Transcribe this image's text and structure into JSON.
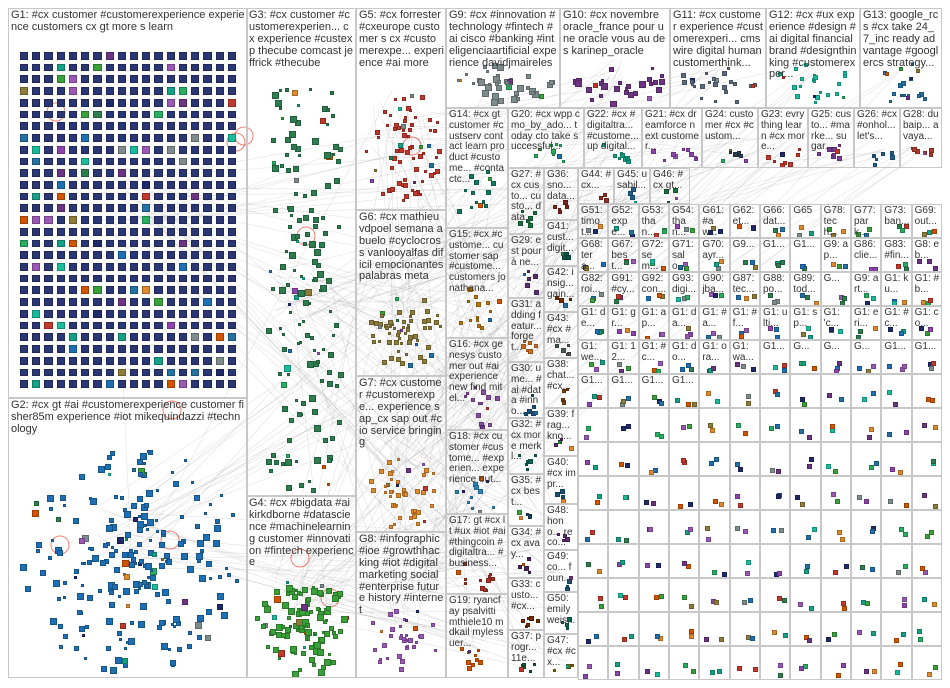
{
  "graph": {
    "title": "",
    "groups": [
      {
        "id": "G1",
        "label": "G1: #cx customer #customerexperience experience customers cx gt more s learn",
        "color": "#1f2a6b",
        "nodes": 520,
        "style": "grid"
      },
      {
        "id": "G2",
        "label": "G2: #cx gt #ai #customerexperience customer fisher85m experience #iot mikequindazzi #technology",
        "color": "#1e6fb3",
        "nodes": 260,
        "style": "cluster"
      },
      {
        "id": "G3",
        "label": "G3: #cx customer #customerexperien... cx experience #custexp thecube comcast jeffrick #thecube",
        "color": "#2e7d4f",
        "nodes": 150,
        "style": "column"
      },
      {
        "id": "G4",
        "label": "G4: #cx #bigdata #ai kirkdborne #datascience #machinelearning customer #innovation #fintech experience",
        "color": "#3aa03a",
        "nodes": 110,
        "style": "cluster"
      },
      {
        "id": "G5",
        "label": "G5: #cx forrester #cxeurope customer s cx #customerexpe... experience #ai more",
        "color": "#c0392b",
        "nodes": 70,
        "style": "cluster"
      },
      {
        "id": "G6",
        "label": "G6: #cx mathieuvdpoel semana abuelo #cyclocross vanlooyalfas dificil emocionantes palabras meta",
        "color": "#8e7c3a",
        "nodes": 60,
        "style": "cluster"
      },
      {
        "id": "G7",
        "label": "G7: #cx customer #customerexpe... experience sap_cx sap out #cio service bringing",
        "color": "#e08a2e",
        "nodes": 45,
        "style": "cluster"
      },
      {
        "id": "G8",
        "label": "G8: #infographic #ioe #growthhacking #iot #digitalmarketing social #enterprise future history #internet",
        "color": "#9b59b6",
        "nodes": 35,
        "style": "cluster"
      },
      {
        "id": "G9",
        "label": "G9: #cx #innovation #technology #fintech #ai cisco #banking #inteligenciaartificial experience davidjmaireles",
        "color": "#7f8c8d",
        "nodes": 40,
        "style": "cluster"
      },
      {
        "id": "G10",
        "label": "G10: #cx novembre oracle_france pour une oracle vous au des karinep_oracle",
        "color": "#6c3483",
        "nodes": 28,
        "style": "cluster"
      },
      {
        "id": "G11",
        "label": "G11: #cx customer experience #customerexperi... cmswire digital human customerthink...",
        "color": "#5d6d7e",
        "nodes": 24,
        "style": "cluster"
      },
      {
        "id": "G12",
        "label": "G12: #cx #ux experience #design #ai digital financialbrand #designthinking #customerexper...",
        "color": "#1abc9c",
        "nodes": 22,
        "style": "cluster"
      },
      {
        "id": "G13",
        "label": "G13: google_rcs #cx take 24_7_inc ready advantage #googlercs strategy...",
        "color": "#2471a3",
        "nodes": 18,
        "style": "cluster"
      },
      {
        "id": "G14",
        "label": "G14: #cx gt customer #custserv contact learn product #custome... #contactc...",
        "color": "#117a65",
        "nodes": 16,
        "style": "cluster"
      },
      {
        "id": "G15",
        "label": "G15: #cx #custome... customer sap #custome... customers jonathana...",
        "color": "#b9770e",
        "nodes": 14,
        "style": "cluster"
      },
      {
        "id": "G16",
        "label": "G16: #cx genesys customer out #ai experience new find mitel...",
        "color": "#884ea0",
        "nodes": 14,
        "style": "cluster"
      },
      {
        "id": "G17",
        "label": "G17: gt #cx lt #ux #iot #ai #thingcoin #digitaltra... #business...",
        "color": "#a93226",
        "nodes": 12,
        "style": "cluster"
      },
      {
        "id": "G18",
        "label": "G18: #cx customer #custome... #experien... experience out...",
        "color": "#2e86c1",
        "nodes": 12,
        "style": "cluster"
      },
      {
        "id": "G19",
        "label": "G19: ryancfay psalvitti mthiele10 mdkail mylessuer...",
        "color": "#d35400",
        "nodes": 10,
        "style": "cluster"
      },
      {
        "id": "G20",
        "label": "G20: #cx wpp cmo_by_ado... today cto take successful...",
        "color": "#27ae60",
        "nodes": 10,
        "style": "cluster"
      },
      {
        "id": "G21",
        "label": "G21: #cx dreamforce next customer...",
        "color": "#8e44ad",
        "nodes": 9,
        "style": "cluster"
      },
      {
        "id": "G22",
        "label": "G22: #cx #digitaltra... #custome... up digital...",
        "color": "#16a085",
        "nodes": 9,
        "style": "cluster"
      },
      {
        "id": "G23",
        "label": "G23: evrything learn #cx more...",
        "color": "#c0392b",
        "nodes": 8,
        "style": "cluster"
      },
      {
        "id": "G24",
        "label": "G24: customer #cx #custom...",
        "color": "#2c3e50",
        "nodes": 8,
        "style": "cluster"
      },
      {
        "id": "G25",
        "label": "G25: custo... #marke... sugar...",
        "color": "#7d3c98",
        "nodes": 8,
        "style": "cluster"
      },
      {
        "id": "G26",
        "label": "G26: #cx #onhol... let's...",
        "color": "#1f618d",
        "nodes": 7,
        "style": "cluster"
      },
      {
        "id": "G27",
        "label": "G27: #cx custo... custo... data...",
        "color": "#196f3d",
        "nodes": 7,
        "style": "cluster"
      },
      {
        "id": "G28",
        "label": "G28: dubaip... avaya...",
        "color": "#b03a2e",
        "nodes": 7,
        "style": "cluster"
      },
      {
        "id": "G29",
        "label": "G29: est pour à ne...",
        "color": "#5b2c6f",
        "nodes": 6,
        "style": "cluster"
      },
      {
        "id": "G30",
        "label": "G30: ume... #ai #data #inno...",
        "color": "#1a5276",
        "nodes": 6,
        "style": "cluster"
      },
      {
        "id": "G31",
        "label": "G31: adding featur... forget...",
        "color": "#ca6f1e",
        "nodes": 6,
        "style": "cluster"
      },
      {
        "id": "G32",
        "label": "G32: #cx more merkl...",
        "color": "#0e6655",
        "nodes": 6,
        "style": "cluster"
      },
      {
        "id": "G33",
        "label": "G33: custo... #cx...",
        "color": "#6e2c00",
        "nodes": 6,
        "style": "cluster"
      },
      {
        "id": "G34",
        "label": "G34: #cx avay...",
        "color": "#4a235a",
        "nodes": 5,
        "style": "cluster"
      },
      {
        "id": "G35",
        "label": "G35: #cx best...",
        "color": "#154360",
        "nodes": 5,
        "style": "cluster"
      },
      {
        "id": "G36",
        "label": "G36: sno... data...",
        "color": "#7b241c",
        "nodes": 5,
        "style": "cluster"
      },
      {
        "id": "G37",
        "label": "G37: progr... 11e...",
        "color": "#145a32",
        "nodes": 5,
        "style": "cluster"
      },
      {
        "id": "G38",
        "label": "G38: chat... #cx...",
        "color": "#784212",
        "nodes": 5,
        "style": "cluster"
      },
      {
        "id": "G39",
        "label": "G39: frag... kno...",
        "color": "#512e5f",
        "nodes": 5,
        "style": "cluster"
      },
      {
        "id": "G40",
        "label": "G40: #cx impr...",
        "color": "#1b4f72",
        "nodes": 5,
        "style": "cluster"
      },
      {
        "id": "G41",
        "label": "G41: cust... digit...",
        "color": "#0b5345",
        "nodes": 5,
        "style": "cluster"
      },
      {
        "id": "G42",
        "label": "G42: insig... gain...",
        "color": "#6e2c00",
        "nodes": 5,
        "style": "cluster"
      },
      {
        "id": "G43",
        "label": "G43: #cx #ma...",
        "color": "#4d5656",
        "nodes": 5,
        "style": "cluster"
      },
      {
        "id": "G44",
        "label": "G44: #cx...",
        "color": "#943126",
        "nodes": 4,
        "style": "cluster"
      },
      {
        "id": "G45",
        "label": "G45: usabil...",
        "color": "#1f618d",
        "nodes": 4,
        "style": "cluster"
      },
      {
        "id": "G46",
        "label": "G46: #cx gt...",
        "color": "#196f3d",
        "nodes": 4,
        "style": "cluster"
      },
      {
        "id": "G47",
        "label": "G47: #cx #cx...",
        "color": "#7d6608",
        "nodes": 4,
        "style": "cluster"
      },
      {
        "id": "G48",
        "label": "G48: hono... reco...",
        "color": "#5b2c6f",
        "nodes": 4,
        "style": "cluster"
      },
      {
        "id": "G49",
        "label": "G49: co... foun...",
        "color": "#1a5276",
        "nodes": 4,
        "style": "cluster"
      },
      {
        "id": "G50",
        "label": "G50: emily weis...",
        "color": "#0e6655",
        "nodes": 4,
        "style": "cluster"
      }
    ],
    "small_groups": [
      "G51: timot...",
      "G52: expe...",
      "G53: than...",
      "G54: than...",
      "G61: #aw...",
      "G62: et...",
      "G66: dat...",
      "G65",
      "G78: tech...",
      "G77: park...",
      "G73: ban...",
      "G69: out...",
      "G68: tera...",
      "G67: best...",
      "G72: sem...",
      "G71: salo...",
      "G70: ayr...",
      "G9...",
      "G1...",
      "G1...",
      "G9: ap...",
      "G86: clie...",
      "G83: #fin...",
      "G8: eb...",
      "G82: roi...",
      "G91: #cy...",
      "G92: con...",
      "G93: digi...",
      "G90: jba...",
      "G87: tec...",
      "G88: po...",
      "G89: tod...",
      "G...",
      "G9: art...",
      "G1: ku...",
      "G1: #b...",
      "G1: de...",
      "G1: gr...",
      "G1: ap...",
      "G1: da...",
      "G1: #a...",
      "G1: #f...",
      "G1: ulti...",
      "G1: sp...",
      "G1: 'c...",
      "G1: eri...",
      "G1: #c...",
      "G1: co...",
      "G1: we...",
      "G1: 12...",
      "G1: #c...",
      "G1: do...",
      "G1: ora...",
      "G1: wa...",
      "G1...",
      "G...",
      "G...",
      "G...",
      "G1...",
      "G1...",
      "G1...",
      "G1...",
      "G1...",
      "G1..."
    ],
    "palette": [
      "#1f2a6b",
      "#1e6fb3",
      "#2e7d4f",
      "#3aa03a",
      "#c0392b",
      "#8e7c3a",
      "#e08a2e",
      "#9b59b6",
      "#7f8c8d",
      "#6c3483",
      "#1abc9c",
      "#2471a3",
      "#d35400",
      "#27ae60",
      "#8e44ad",
      "#16a085"
    ]
  }
}
